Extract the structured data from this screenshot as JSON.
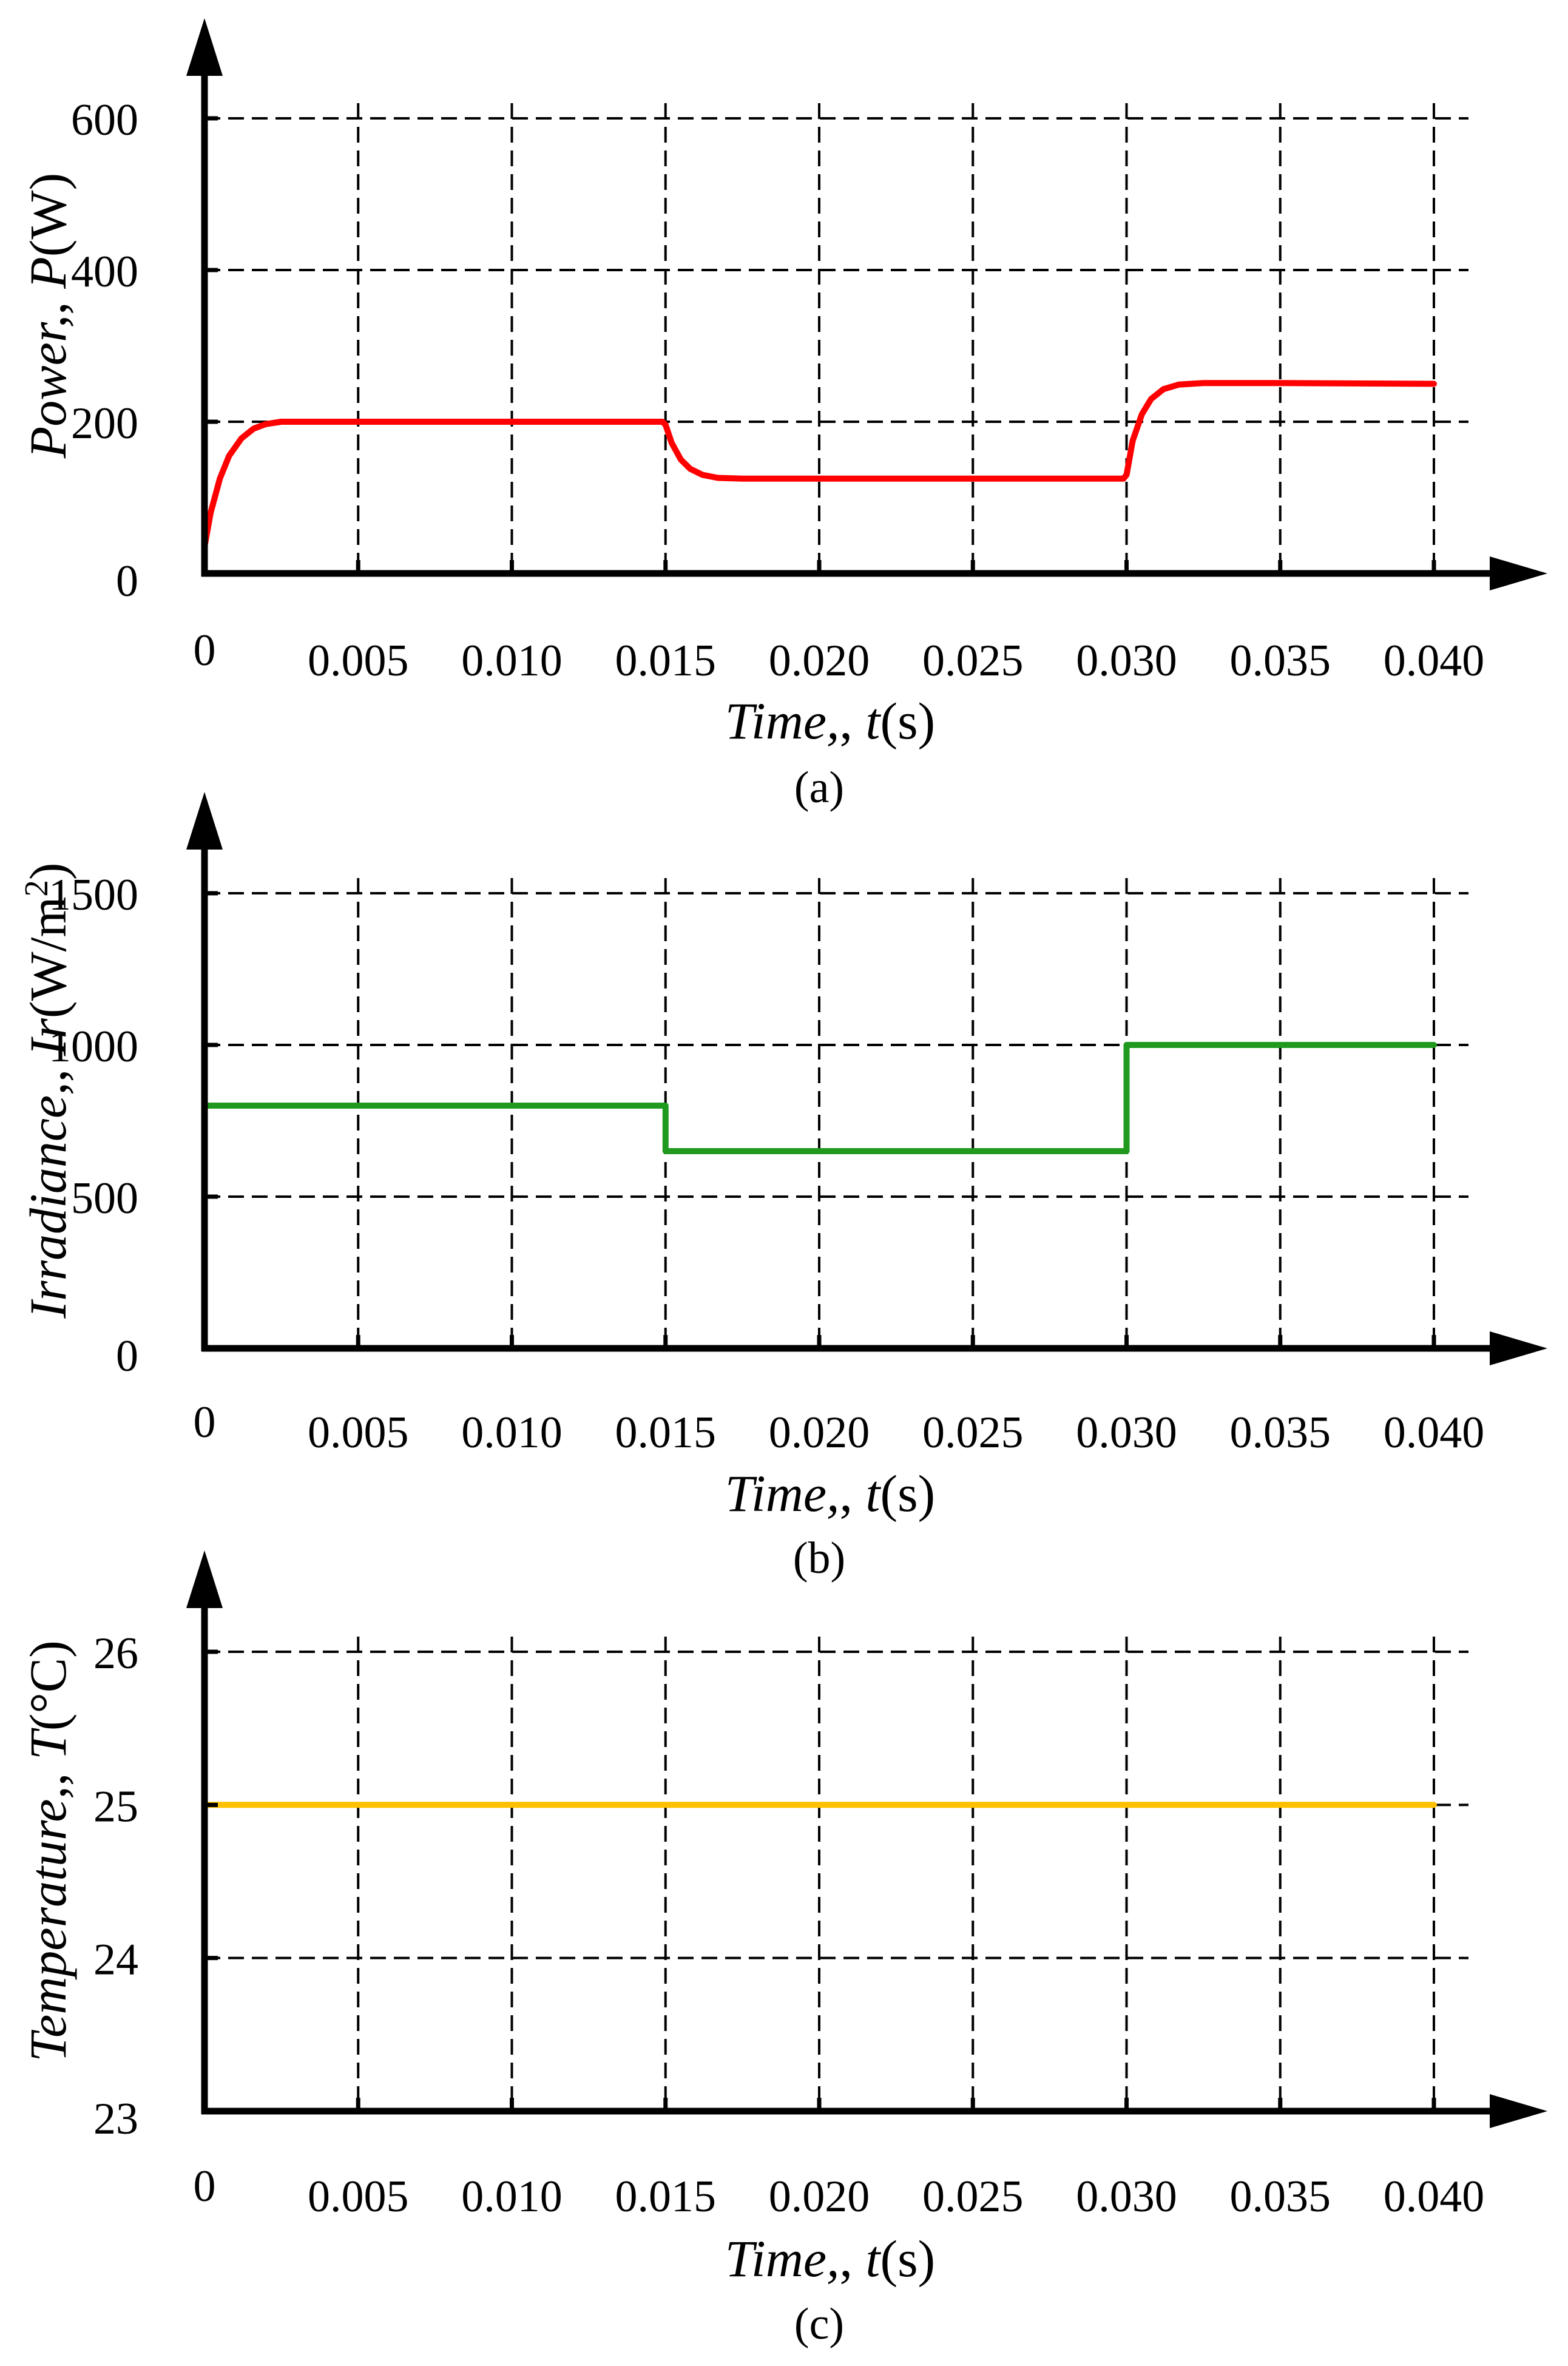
{
  "chart_data": [
    {
      "type": "line",
      "panel": "a",
      "caption": "(a)",
      "ylabel": {
        "title": "Power, ",
        "symbol": "P",
        "unit": "(W)"
      },
      "xlabel": {
        "title": "Time, ",
        "symbol": "t",
        "unit": "(s)"
      },
      "xlim": [
        0,
        0.04
      ],
      "ylim": [
        0,
        600
      ],
      "x_ticks": [
        0.005,
        0.01,
        0.015,
        0.02,
        0.025,
        0.03,
        0.035,
        0.04
      ],
      "x_tick_labels": [
        "0",
        "0.005",
        "0.010",
        "0.015",
        "0.020",
        "0.025",
        "0.030",
        "0.035",
        "0.040"
      ],
      "y_ticks": [
        200,
        400,
        600
      ],
      "y_tick_labels": [
        "0",
        "200",
        "400",
        "600"
      ],
      "grid": true,
      "series": [
        {
          "name": "Power",
          "color": "#ff0000",
          "x": [
            0,
            0.0002,
            0.0005,
            0.0008,
            0.0012,
            0.0016,
            0.002,
            0.0025,
            0.003,
            0.005,
            0.01,
            0.0149,
            0.015,
            0.0152,
            0.0155,
            0.0158,
            0.0162,
            0.0167,
            0.0175,
            0.02,
            0.025,
            0.0299,
            0.03,
            0.0302,
            0.0305,
            0.0308,
            0.0312,
            0.0317,
            0.0325,
            0.035,
            0.04
          ],
          "y": [
            35,
            80,
            125,
            155,
            178,
            191,
            197,
            200,
            200,
            200,
            200,
            200,
            196,
            172,
            150,
            138,
            130,
            126,
            125,
            125,
            125,
            125,
            130,
            175,
            210,
            230,
            243,
            249,
            251,
            251,
            250
          ]
        }
      ]
    },
    {
      "type": "line",
      "panel": "b",
      "caption": "(b)",
      "ylabel": {
        "title": "Irradiance, ",
        "symbol": "Ir",
        "unit": "(W/m",
        "unit_sup": "2",
        "unit_end": ")"
      },
      "xlabel": {
        "title": "Time, ",
        "symbol": "t",
        "unit": "(s)"
      },
      "xlim": [
        0,
        0.04
      ],
      "ylim": [
        0,
        1500
      ],
      "x_ticks": [
        0.005,
        0.01,
        0.015,
        0.02,
        0.025,
        0.03,
        0.035,
        0.04
      ],
      "x_tick_labels": [
        "0",
        "0.005",
        "0.010",
        "0.015",
        "0.020",
        "0.025",
        "0.030",
        "0.035",
        "0.040"
      ],
      "y_ticks": [
        500,
        1000,
        1500
      ],
      "y_tick_labels": [
        "0",
        "500",
        "1000",
        "1500"
      ],
      "grid": true,
      "series": [
        {
          "name": "Irradiance",
          "color": "#1f9a1f",
          "x": [
            0,
            0.015,
            0.015,
            0.03,
            0.03,
            0.04
          ],
          "y": [
            800,
            800,
            650,
            650,
            1000,
            1000
          ]
        }
      ]
    },
    {
      "type": "line",
      "panel": "c",
      "caption": "(c)",
      "ylabel": {
        "title": "Temperature, ",
        "symbol": "T",
        "unit": "(°C)"
      },
      "xlabel": {
        "title": "Time, ",
        "symbol": "t",
        "unit": "(s)"
      },
      "xlim": [
        0,
        0.04
      ],
      "ylim": [
        23,
        26
      ],
      "x_ticks": [
        0.005,
        0.01,
        0.015,
        0.02,
        0.025,
        0.03,
        0.035,
        0.04
      ],
      "x_tick_labels": [
        "0",
        "0.005",
        "0.010",
        "0.015",
        "0.020",
        "0.025",
        "0.030",
        "0.035",
        "0.040"
      ],
      "y_ticks": [
        24,
        25,
        26
      ],
      "y_tick_labels": [
        "23",
        "24",
        "25",
        "26"
      ],
      "grid": true,
      "series": [
        {
          "name": "Temperature",
          "color": "#ffc000",
          "x": [
            0,
            0.04
          ],
          "y": [
            25,
            25
          ]
        }
      ]
    }
  ]
}
